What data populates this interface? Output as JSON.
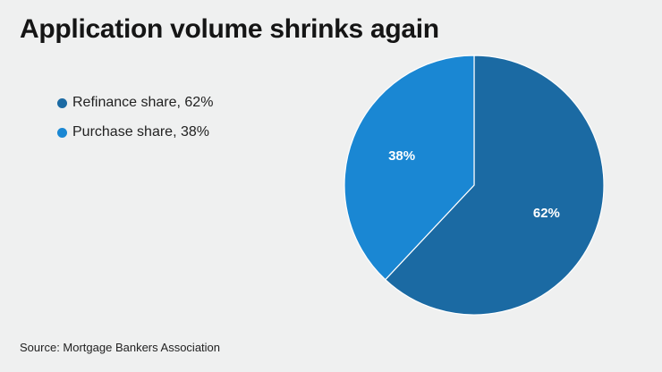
{
  "title": "Application volume shrinks again",
  "source": "Source: Mortgage Bankers Association",
  "legend": [
    {
      "label": "Refinance share, 62%",
      "color": "#1b6aa3"
    },
    {
      "label": "Purchase share, 38%",
      "color": "#1a87d3"
    }
  ],
  "chart_data": {
    "type": "pie",
    "title": "Application volume shrinks again",
    "slices": [
      {
        "name": "Refinance share",
        "value": 62,
        "label": "62%",
        "color": "#1b6aa3"
      },
      {
        "name": "Purchase share",
        "value": 38,
        "label": "38%",
        "color": "#1a87d3"
      }
    ],
    "legend_position": "left"
  }
}
